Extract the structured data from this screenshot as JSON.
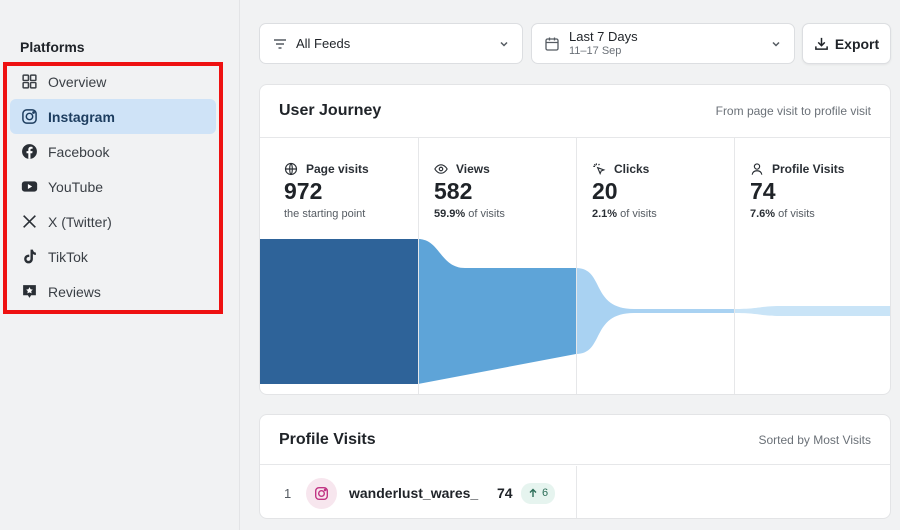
{
  "sidebar": {
    "title": "Platforms",
    "items": [
      {
        "label": "Overview",
        "icon": "grid-icon"
      },
      {
        "label": "Instagram",
        "icon": "instagram-icon",
        "active": true
      },
      {
        "label": "Facebook",
        "icon": "facebook-icon"
      },
      {
        "label": "YouTube",
        "icon": "youtube-icon"
      },
      {
        "label": "X (Twitter)",
        "icon": "x-icon"
      },
      {
        "label": "TikTok",
        "icon": "tiktok-icon"
      },
      {
        "label": "Reviews",
        "icon": "reviews-icon"
      }
    ]
  },
  "toolbar": {
    "feeds_label": "All Feeds",
    "date_label": "Last 7 Days",
    "date_range": "11–17 Sep",
    "export_label": "Export"
  },
  "journey": {
    "title": "User Journey",
    "subtitle": "From page visit to profile visit",
    "stages": [
      {
        "name": "Page visits",
        "value": "972",
        "pct": "",
        "desc": "the starting point"
      },
      {
        "name": "Views",
        "value": "582",
        "pct": "59.9%",
        "desc": " of visits"
      },
      {
        "name": "Clicks",
        "value": "20",
        "pct": "2.1%",
        "desc": " of visits"
      },
      {
        "name": "Profile Visits",
        "value": "74",
        "pct": "7.6%",
        "desc": " of visits"
      }
    ],
    "colors": [
      "#2e6399",
      "#5ea4d8",
      "#a9d2f2",
      "#c9e4f7"
    ]
  },
  "profiles": {
    "title": "Profile Visits",
    "subtitle": "Sorted by Most Visits",
    "rows": [
      {
        "rank": "1",
        "name": "wanderlust_wares_",
        "count": "74",
        "delta": "6"
      }
    ]
  }
}
